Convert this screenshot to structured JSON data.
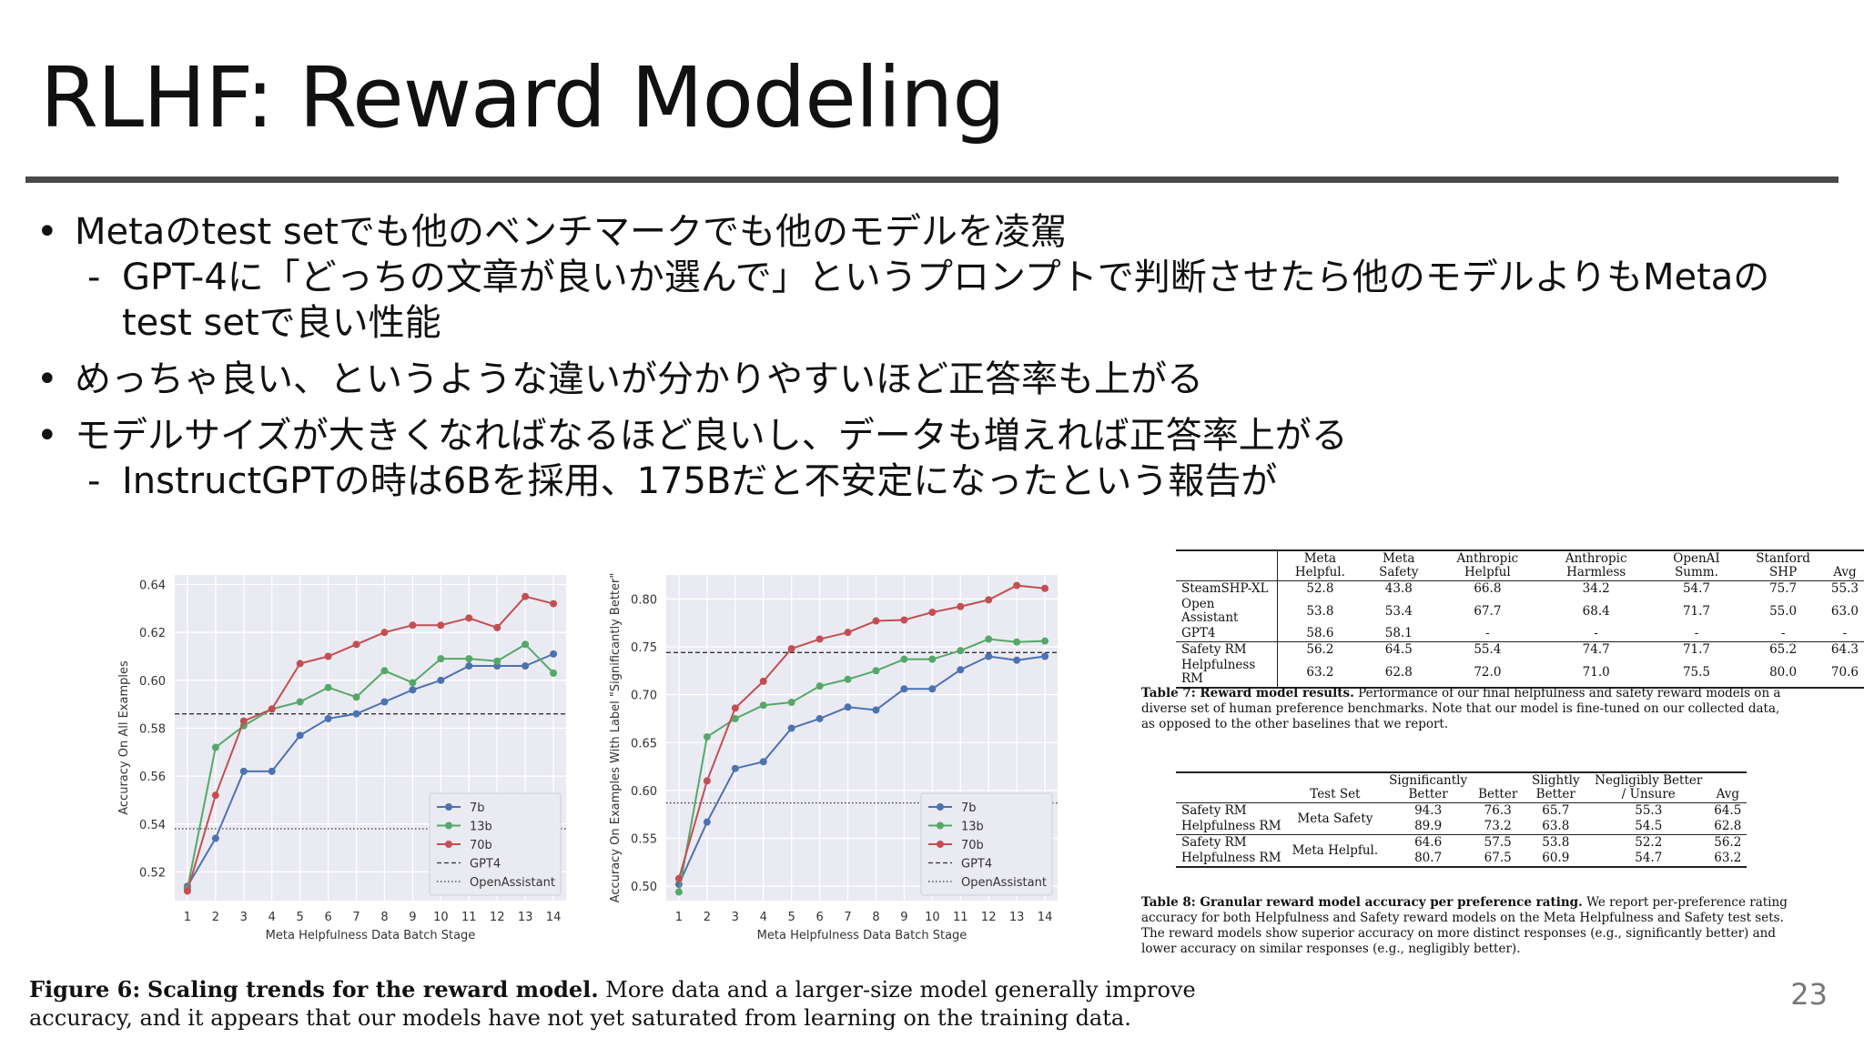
{
  "slide": {
    "title": "RLHF: Reward Modeling",
    "page_number": "23"
  },
  "bullets": [
    {
      "marker": "•",
      "text": "Metaのtest setでも他のベンチマークでも他のモデルを凌駕",
      "subs": [
        {
          "marker": "-",
          "text": "GPT-4に「どっちの文章が良いか選んで」というプロンプトで判断させたら他のモデルよりもMetaのtest setで良い性能"
        }
      ]
    },
    {
      "marker": "•",
      "text": "めっちゃ良い、というような違いが分かりやすいほど正答率も上がる",
      "subs": []
    },
    {
      "marker": "•",
      "text": "モデルサイズが大きくなればなるほど良いし、データも増えれば正答率上がる",
      "subs": [
        {
          "marker": "-",
          "text": "InstructGPTの時は6Bを採用、175Bだと不安定になったという報告が"
        }
      ]
    }
  ],
  "chart_data": [
    {
      "type": "line",
      "x": [
        1,
        2,
        3,
        4,
        5,
        6,
        7,
        8,
        9,
        10,
        11,
        12,
        13,
        14
      ],
      "xlabel": "Meta Helpfulness Data Batch Stage",
      "ylabel": "Accuracy On All Examples",
      "ylim": [
        0.508,
        0.644
      ],
      "yticks": [
        0.52,
        0.54,
        0.56,
        0.58,
        0.6,
        0.62,
        0.64
      ],
      "ytick_labels": [
        "0.52",
        "0.54",
        "0.56",
        "0.58",
        "0.60",
        "0.62",
        "0.64"
      ],
      "grid": true,
      "legend_position": "bottom-right",
      "series": [
        {
          "name": "7b",
          "color": "#4c72b0",
          "values": [
            0.514,
            0.534,
            0.562,
            0.562,
            0.577,
            0.584,
            0.586,
            0.591,
            0.596,
            0.6,
            0.606,
            0.606,
            0.606,
            0.611
          ]
        },
        {
          "name": "13b",
          "color": "#55a868",
          "values": [
            0.513,
            0.572,
            0.581,
            0.588,
            0.591,
            0.597,
            0.593,
            0.604,
            0.599,
            0.609,
            0.609,
            0.608,
            0.615,
            0.603
          ]
        },
        {
          "name": "70b",
          "color": "#c44e52",
          "values": [
            0.512,
            0.552,
            0.583,
            0.588,
            0.607,
            0.61,
            0.615,
            0.62,
            0.623,
            0.623,
            0.626,
            0.622,
            0.635,
            0.632
          ]
        }
      ],
      "reference_lines": [
        {
          "name": "GPT4",
          "style": "dashed",
          "value": 0.586
        },
        {
          "name": "OpenAssistant",
          "style": "dotted",
          "value": 0.538
        }
      ]
    },
    {
      "type": "line",
      "x": [
        1,
        2,
        3,
        4,
        5,
        6,
        7,
        8,
        9,
        10,
        11,
        12,
        13,
        14
      ],
      "xlabel": "Meta Helpfulness Data Batch Stage",
      "ylabel": "Accuracy On Examples With Label \"Significantly Better\"",
      "ylim": [
        0.485,
        0.825
      ],
      "yticks": [
        0.5,
        0.55,
        0.6,
        0.65,
        0.7,
        0.75,
        0.8
      ],
      "ytick_labels": [
        "0.50",
        "0.55",
        "0.60",
        "0.65",
        "0.70",
        "0.75",
        "0.80"
      ],
      "grid": true,
      "legend_position": "bottom-right",
      "series": [
        {
          "name": "7b",
          "color": "#4c72b0",
          "values": [
            0.502,
            0.567,
            0.623,
            0.63,
            0.665,
            0.675,
            0.687,
            0.684,
            0.706,
            0.706,
            0.726,
            0.74,
            0.736,
            0.74
          ]
        },
        {
          "name": "13b",
          "color": "#55a868",
          "values": [
            0.494,
            0.656,
            0.675,
            0.689,
            0.692,
            0.709,
            0.716,
            0.725,
            0.737,
            0.737,
            0.746,
            0.758,
            0.755,
            0.756
          ]
        },
        {
          "name": "70b",
          "color": "#c44e52",
          "values": [
            0.508,
            0.61,
            0.686,
            0.714,
            0.748,
            0.758,
            0.765,
            0.777,
            0.778,
            0.786,
            0.792,
            0.799,
            0.814,
            0.811
          ]
        }
      ],
      "reference_lines": [
        {
          "name": "GPT4",
          "style": "dashed",
          "value": 0.744
        },
        {
          "name": "OpenAssistant",
          "style": "dotted",
          "value": 0.587
        }
      ]
    }
  ],
  "figure_caption": {
    "label": "Figure 6:",
    "bold": "Scaling trends for the reward model.",
    "text": "More data and a larger-size model generally improve accuracy, and it appears that our models have not yet saturated from learning on the training data."
  },
  "table7": {
    "headers": [
      "",
      "Meta Helpful.",
      "Meta Safety",
      "Anthropic Helpful",
      "Anthropic Harmless",
      "OpenAI Summ.",
      "Stanford SHP",
      "Avg"
    ],
    "rows_group1": [
      [
        "SteamSHP-XL",
        "52.8",
        "43.8",
        "66.8",
        "34.2",
        "54.7",
        "75.7",
        "55.3"
      ],
      [
        "Open Assistant",
        "53.8",
        "53.4",
        "67.7",
        "68.4",
        "71.7",
        "55.0",
        "63.0"
      ],
      [
        "GPT4",
        "58.6",
        "58.1",
        "-",
        "-",
        "-",
        "-",
        "-"
      ]
    ],
    "rows_group2": [
      [
        "Safety RM",
        "56.2",
        "64.5",
        "55.4",
        "74.7",
        "71.7",
        "65.2",
        "64.3"
      ],
      [
        "Helpfulness RM",
        "63.2",
        "62.8",
        "72.0",
        "71.0",
        "75.5",
        "80.0",
        "70.6"
      ]
    ],
    "caption_bold": "Table 7: Reward model results.",
    "caption_text": "Performance of our final helpfulness and safety reward models on a diverse set of human preference benchmarks. Note that our model is fine-tuned on our collected data, as opposed to the other baselines that we report."
  },
  "table8": {
    "headers": [
      "",
      "Test Set",
      "Significantly Better",
      "Better",
      "Slightly Better",
      "Negligibly Better / Unsure",
      "Avg"
    ],
    "groups": [
      {
        "test_set": "Meta Safety",
        "rows": [
          [
            "Safety RM",
            "94.3",
            "76.3",
            "65.7",
            "55.3",
            "64.5"
          ],
          [
            "Helpfulness RM",
            "89.9",
            "73.2",
            "63.8",
            "54.5",
            "62.8"
          ]
        ]
      },
      {
        "test_set": "Meta Helpful.",
        "rows": [
          [
            "Safety RM",
            "64.6",
            "57.5",
            "53.8",
            "52.2",
            "56.2"
          ],
          [
            "Helpfulness RM",
            "80.7",
            "67.5",
            "60.9",
            "54.7",
            "63.2"
          ]
        ]
      }
    ],
    "caption_bold": "Table 8: Granular reward model accuracy per preference rating.",
    "caption_text": "We report per-preference rating accuracy for both Helpfulness and Safety reward models on the Meta Helpfulness and Safety test sets. The reward models show superior accuracy on more distinct responses (e.g., significantly better) and lower accuracy on similar responses (e.g., negligibly better)."
  }
}
